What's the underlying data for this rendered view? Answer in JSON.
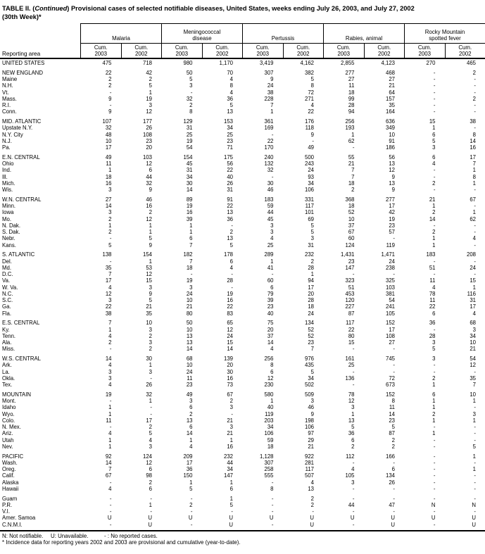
{
  "title": {
    "part1": "TABLE II. (",
    "continued": "Continued",
    "part2": ") Provisional cases of selected notifiable diseases, United States, weeks ending July 26, 2003, and July 27, 2002",
    "line2": "(30th Week)*"
  },
  "table": {
    "row_header_label": "Reporting area",
    "col_groups": [
      "Malaria",
      "Meningococcal disease",
      "Pertussis",
      "Rabies, animal",
      "Rocky Mountain spotted fever"
    ],
    "sub_label": "Cum.",
    "years": [
      "2003",
      "2002"
    ],
    "rows": [
      {
        "area": "UNITED STATES",
        "values": [
          "475",
          "718",
          "980",
          "1,170",
          "3,419",
          "4,162",
          "2,855",
          "4,123",
          "270",
          "465"
        ]
      },
      {
        "area": "NEW ENGLAND",
        "section_start": true,
        "values": [
          "22",
          "42",
          "50",
          "70",
          "307",
          "382",
          "277",
          "468",
          "-",
          "2"
        ]
      },
      {
        "area": "Maine",
        "values": [
          "2",
          "2",
          "5",
          "4",
          "9",
          "5",
          "27",
          "27",
          "-",
          "-"
        ]
      },
      {
        "area": "N.H.",
        "values": [
          "2",
          "5",
          "3",
          "8",
          "24",
          "8",
          "11",
          "21",
          "-",
          "-"
        ]
      },
      {
        "area": "Vt.",
        "values": [
          "-",
          "1",
          "-",
          "4",
          "38",
          "72",
          "18",
          "64",
          "-",
          "-"
        ]
      },
      {
        "area": "Mass.",
        "values": [
          "9",
          "19",
          "32",
          "36",
          "228",
          "271",
          "99",
          "157",
          "-",
          "2"
        ]
      },
      {
        "area": "R.I.",
        "values": [
          "-",
          "3",
          "2",
          "5",
          "7",
          "4",
          "28",
          "35",
          "-",
          "-"
        ]
      },
      {
        "area": "Conn.",
        "values": [
          "9",
          "12",
          "8",
          "13",
          "1",
          "22",
          "94",
          "164",
          "-",
          "-"
        ]
      },
      {
        "area": "MID. ATLANTIC",
        "section_start": true,
        "values": [
          "107",
          "177",
          "129",
          "153",
          "361",
          "176",
          "256",
          "636",
          "15",
          "38"
        ]
      },
      {
        "area": "Upstate N.Y.",
        "values": [
          "32",
          "26",
          "31",
          "34",
          "169",
          "118",
          "193",
          "349",
          "1",
          "-"
        ]
      },
      {
        "area": "N.Y. City",
        "values": [
          "48",
          "108",
          "25",
          "25",
          "-",
          "9",
          "1",
          "10",
          "6",
          "8"
        ]
      },
      {
        "area": "N.J.",
        "values": [
          "10",
          "23",
          "19",
          "23",
          "22",
          "-",
          "62",
          "91",
          "5",
          "14"
        ]
      },
      {
        "area": "Pa.",
        "values": [
          "17",
          "20",
          "54",
          "71",
          "170",
          "49",
          "-",
          "186",
          "3",
          "16"
        ]
      },
      {
        "area": "E.N. CENTRAL",
        "section_start": true,
        "values": [
          "49",
          "103",
          "154",
          "175",
          "240",
          "500",
          "55",
          "56",
          "6",
          "17"
        ]
      },
      {
        "area": "Ohio",
        "values": [
          "11",
          "12",
          "45",
          "56",
          "132",
          "243",
          "21",
          "13",
          "4",
          "7"
        ]
      },
      {
        "area": "Ind.",
        "values": [
          "1",
          "6",
          "31",
          "22",
          "32",
          "24",
          "7",
          "12",
          "-",
          "1"
        ]
      },
      {
        "area": "Ill.",
        "values": [
          "18",
          "44",
          "34",
          "40",
          "-",
          "93",
          "7",
          "9",
          "-",
          "8"
        ]
      },
      {
        "area": "Mich.",
        "values": [
          "16",
          "32",
          "30",
          "26",
          "30",
          "34",
          "18",
          "13",
          "2",
          "1"
        ]
      },
      {
        "area": "Wis.",
        "values": [
          "3",
          "9",
          "14",
          "31",
          "46",
          "106",
          "2",
          "9",
          "-",
          "-"
        ]
      },
      {
        "area": "W.N. CENTRAL",
        "section_start": true,
        "values": [
          "27",
          "46",
          "89",
          "91",
          "183",
          "331",
          "368",
          "277",
          "21",
          "67"
        ]
      },
      {
        "area": "Minn.",
        "values": [
          "14",
          "16",
          "19",
          "22",
          "59",
          "117",
          "18",
          "17",
          "1",
          "-"
        ]
      },
      {
        "area": "Iowa",
        "values": [
          "3",
          "2",
          "16",
          "13",
          "44",
          "101",
          "52",
          "42",
          "2",
          "1"
        ]
      },
      {
        "area": "Mo.",
        "values": [
          "2",
          "12",
          "39",
          "36",
          "45",
          "69",
          "10",
          "19",
          "14",
          "62"
        ]
      },
      {
        "area": "N. Dak.",
        "values": [
          "1",
          "1",
          "1",
          "-",
          "3",
          "5",
          "37",
          "23",
          "-",
          "-"
        ]
      },
      {
        "area": "S. Dak.",
        "values": [
          "2",
          "1",
          "1",
          "2",
          "3",
          "5",
          "67",
          "57",
          "2",
          "-"
        ]
      },
      {
        "area": "Nebr.",
        "values": [
          "-",
          "5",
          "6",
          "13",
          "4",
          "3",
          "60",
          "-",
          "1",
          "4"
        ]
      },
      {
        "area": "Kans.",
        "values": [
          "5",
          "9",
          "7",
          "5",
          "25",
          "31",
          "124",
          "119",
          "1",
          "-"
        ]
      },
      {
        "area": "S. ATLANTIC",
        "section_start": true,
        "values": [
          "138",
          "154",
          "182",
          "178",
          "289",
          "232",
          "1,431",
          "1,471",
          "183",
          "208"
        ]
      },
      {
        "area": "Del.",
        "values": [
          "-",
          "1",
          "7",
          "6",
          "1",
          "2",
          "23",
          "24",
          "-",
          "-"
        ]
      },
      {
        "area": "Md.",
        "values": [
          "35",
          "53",
          "18",
          "4",
          "41",
          "28",
          "147",
          "238",
          "51",
          "24"
        ]
      },
      {
        "area": "D.C.",
        "values": [
          "7",
          "12",
          "-",
          "-",
          "-",
          "1",
          "-",
          "-",
          "-",
          "-"
        ]
      },
      {
        "area": "Va.",
        "values": [
          "17",
          "15",
          "19",
          "28",
          "60",
          "94",
          "323",
          "325",
          "11",
          "15"
        ]
      },
      {
        "area": "W. Va.",
        "values": [
          "4",
          "3",
          "3",
          "-",
          "6",
          "17",
          "51",
          "103",
          "4",
          "1"
        ]
      },
      {
        "area": "N.C.",
        "values": [
          "12",
          "9",
          "24",
          "19",
          "79",
          "20",
          "453",
          "381",
          "78",
          "116"
        ]
      },
      {
        "area": "S.C.",
        "values": [
          "3",
          "5",
          "10",
          "16",
          "39",
          "28",
          "120",
          "54",
          "11",
          "31"
        ]
      },
      {
        "area": "Ga.",
        "values": [
          "22",
          "21",
          "21",
          "22",
          "23",
          "18",
          "227",
          "241",
          "22",
          "17"
        ]
      },
      {
        "area": "Fla.",
        "values": [
          "38",
          "35",
          "80",
          "83",
          "40",
          "24",
          "87",
          "105",
          "6",
          "4"
        ]
      },
      {
        "area": "E.S. CENTRAL",
        "section_start": true,
        "values": [
          "7",
          "10",
          "50",
          "65",
          "75",
          "134",
          "117",
          "152",
          "36",
          "68"
        ]
      },
      {
        "area": "Ky.",
        "values": [
          "1",
          "3",
          "10",
          "12",
          "20",
          "52",
          "22",
          "17",
          "-",
          "3"
        ]
      },
      {
        "area": "Tenn.",
        "values": [
          "4",
          "2",
          "13",
          "24",
          "37",
          "52",
          "80",
          "108",
          "28",
          "34"
        ]
      },
      {
        "area": "Ala.",
        "values": [
          "2",
          "3",
          "13",
          "15",
          "14",
          "23",
          "15",
          "27",
          "3",
          "10"
        ]
      },
      {
        "area": "Miss.",
        "values": [
          "-",
          "2",
          "14",
          "14",
          "4",
          "7",
          "-",
          "-",
          "5",
          "21"
        ]
      },
      {
        "area": "W.S. CENTRAL",
        "section_start": true,
        "values": [
          "14",
          "30",
          "68",
          "139",
          "256",
          "976",
          "161",
          "745",
          "3",
          "54"
        ]
      },
      {
        "area": "Ark.",
        "values": [
          "4",
          "1",
          "10",
          "20",
          "8",
          "435",
          "25",
          "-",
          "-",
          "12"
        ]
      },
      {
        "area": "La.",
        "values": [
          "3",
          "3",
          "24",
          "30",
          "6",
          "5",
          "-",
          "-",
          "-",
          "-"
        ]
      },
      {
        "area": "Okla.",
        "values": [
          "3",
          "-",
          "11",
          "16",
          "12",
          "34",
          "136",
          "72",
          "2",
          "35"
        ]
      },
      {
        "area": "Tex.",
        "values": [
          "4",
          "26",
          "23",
          "73",
          "230",
          "502",
          "-",
          "673",
          "1",
          "7"
        ]
      },
      {
        "area": "MOUNTAIN",
        "section_start": true,
        "values": [
          "19",
          "32",
          "49",
          "67",
          "580",
          "509",
          "78",
          "152",
          "6",
          "10"
        ]
      },
      {
        "area": "Mont.",
        "values": [
          "-",
          "1",
          "3",
          "2",
          "1",
          "3",
          "12",
          "8",
          "1",
          "1"
        ]
      },
      {
        "area": "Idaho",
        "values": [
          "1",
          "-",
          "6",
          "3",
          "40",
          "46",
          "3",
          "11",
          "1",
          "-"
        ]
      },
      {
        "area": "Wyo.",
        "values": [
          "1",
          "-",
          "2",
          "-",
          "119",
          "9",
          "1",
          "14",
          "2",
          "3"
        ]
      },
      {
        "area": "Colo.",
        "values": [
          "11",
          "17",
          "13",
          "21",
          "203",
          "198",
          "13",
          "23",
          "1",
          "1"
        ]
      },
      {
        "area": "N. Mex.",
        "values": [
          "-",
          "2",
          "6",
          "3",
          "34",
          "106",
          "5",
          "5",
          "-",
          "-"
        ]
      },
      {
        "area": "Ariz.",
        "values": [
          "4",
          "5",
          "14",
          "21",
          "106",
          "97",
          "36",
          "87",
          "1",
          "-"
        ]
      },
      {
        "area": "Utah",
        "values": [
          "1",
          "4",
          "1",
          "1",
          "59",
          "29",
          "6",
          "2",
          "-",
          "-"
        ]
      },
      {
        "area": "Nev.",
        "values": [
          "1",
          "3",
          "4",
          "16",
          "18",
          "21",
          "2",
          "2",
          "-",
          "5"
        ]
      },
      {
        "area": "PACIFIC",
        "section_start": true,
        "values": [
          "92",
          "124",
          "209",
          "232",
          "1,128",
          "922",
          "112",
          "166",
          "-",
          "1"
        ]
      },
      {
        "area": "Wash.",
        "values": [
          "14",
          "12",
          "17",
          "44",
          "307",
          "281",
          "-",
          "-",
          "-",
          "-"
        ]
      },
      {
        "area": "Oreg.",
        "values": [
          "7",
          "6",
          "36",
          "34",
          "258",
          "117",
          "4",
          "6",
          "-",
          "1"
        ]
      },
      {
        "area": "Calif.",
        "values": [
          "67",
          "98",
          "150",
          "147",
          "555",
          "507",
          "105",
          "134",
          "-",
          "-"
        ]
      },
      {
        "area": "Alaska",
        "values": [
          "-",
          "2",
          "1",
          "1",
          "-",
          "4",
          "3",
          "26",
          "-",
          "-"
        ]
      },
      {
        "area": "Hawaii",
        "values": [
          "4",
          "6",
          "5",
          "6",
          "8",
          "13",
          "-",
          "-",
          "-",
          "-"
        ]
      },
      {
        "area": "Guam",
        "section_start": true,
        "values": [
          "-",
          "-",
          "-",
          "1",
          "-",
          "2",
          "-",
          "-",
          "-",
          "-"
        ]
      },
      {
        "area": "P.R.",
        "values": [
          "-",
          "1",
          "2",
          "5",
          "-",
          "2",
          "44",
          "47",
          "N",
          "N"
        ]
      },
      {
        "area": "V.I.",
        "values": [
          "-",
          "-",
          "-",
          "-",
          "-",
          "-",
          "-",
          "-",
          "-",
          "-"
        ]
      },
      {
        "area": "Amer. Samoa",
        "values": [
          "U",
          "U",
          "U",
          "U",
          "U",
          "U",
          "U",
          "U",
          "U",
          "U"
        ]
      },
      {
        "area": "C.N.M.I.",
        "values": [
          "-",
          "U",
          "-",
          "U",
          "-",
          "U",
          "-",
          "U",
          "-",
          "U"
        ]
      }
    ]
  },
  "footnotes": {
    "legend": [
      "N: Not notifiable.",
      "U: Unavailable.",
      "- : No reported cases."
    ],
    "note": "* Incidence data for reporting years 2002 and 2003 are provisional and cumulative (year-to-date)."
  }
}
